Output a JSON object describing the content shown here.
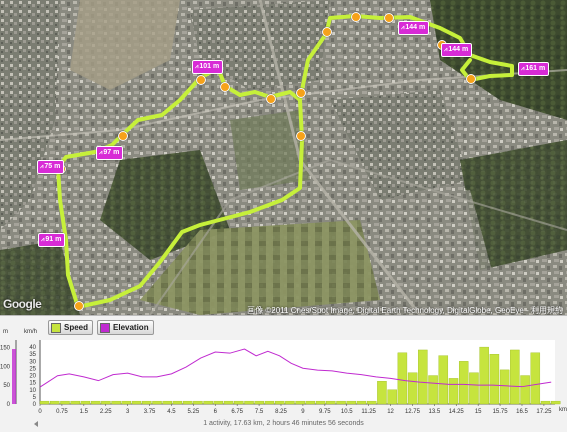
{
  "map": {
    "logo": "Google",
    "copyright": "画像 ©2011 Cnes/Spot Image, Digital Earth Technology, DigitalGlobe, GeoEye - 利用規約",
    "route_color": "#c6f03a",
    "waypoint_color": "#f6a21a",
    "pin_color": "#d82bd6",
    "elevation_glyph": "⩘",
    "elevation_pins": [
      {
        "label": "75 m"
      },
      {
        "label": "97 m"
      },
      {
        "label": "101 m"
      },
      {
        "label": "144 m"
      },
      {
        "label": "144 m"
      },
      {
        "label": "161 m"
      },
      {
        "label": "91 m"
      }
    ]
  },
  "chart_controls": {
    "legend": [
      {
        "label": "Speed",
        "icon": "speed-swatch",
        "color": "#c6e43e"
      },
      {
        "label": "Elevation",
        "icon": "elevation-swatch",
        "color": "#c02ad0"
      }
    ],
    "status": "1 activity, 17.63 km, 2 hours 46 minutes 56 seconds"
  },
  "chart_data": {
    "type": "bar",
    "x_unit": "km",
    "xlim": [
      0,
      17.63
    ],
    "x_ticks": [
      "0",
      "0.75",
      "1.5",
      "2.25",
      "3",
      "3.75",
      "4.5",
      "5.25",
      "6",
      "6.75",
      "7.5",
      "8.25",
      "9",
      "9.75",
      "10.5",
      "11.25",
      "12",
      "12.75",
      "13.5",
      "14.25",
      "15",
      "15.75",
      "16.5",
      "17.25"
    ],
    "y_left": {
      "unit": "m",
      "ticks": [
        "0",
        "50",
        "100",
        "150"
      ],
      "range": [
        0,
        170
      ]
    },
    "y_right": {
      "unit": "km/h",
      "ticks": [
        "0",
        "5",
        "10",
        "15",
        "20",
        "25",
        "30",
        "35",
        "40"
      ],
      "range": [
        0,
        45
      ]
    },
    "series": [
      {
        "name": "Speed",
        "kind": "bars",
        "color": "#c6e43e",
        "x": [
          0,
          0.35,
          0.7,
          1.05,
          1.4,
          1.75,
          2.1,
          2.45,
          2.8,
          3.15,
          3.5,
          3.85,
          4.2,
          4.55,
          4.9,
          5.25,
          5.6,
          5.95,
          6.3,
          6.65,
          7.0,
          7.35,
          7.7,
          8.05,
          8.4,
          8.75,
          9.1,
          9.45,
          9.8,
          10.15,
          10.5,
          10.85,
          11.2,
          11.55,
          11.9,
          12.25,
          12.6,
          12.95,
          13.3,
          13.65,
          14.0,
          14.35,
          14.7,
          15.05,
          15.4,
          15.75,
          16.1,
          16.45,
          16.8,
          17.15,
          17.5
        ],
        "values": [
          2,
          2,
          2,
          2,
          2,
          2,
          2,
          2,
          2,
          2,
          2,
          2,
          2,
          2,
          2,
          2,
          2,
          2,
          2,
          2,
          2,
          2,
          2,
          2,
          2,
          2,
          2,
          2,
          2,
          2,
          2,
          2,
          2,
          16,
          10,
          36,
          22,
          38,
          20,
          34,
          18,
          30,
          22,
          40,
          35,
          24,
          38,
          20,
          36,
          2,
          2
        ]
      },
      {
        "name": "Elevation",
        "kind": "line",
        "color": "#c02ad0",
        "x": [
          0,
          0.2,
          0.6,
          1.0,
          1.5,
          2.0,
          2.5,
          3.0,
          3.5,
          4.0,
          4.5,
          5.0,
          5.5,
          6.0,
          6.5,
          7.0,
          7.4,
          7.8,
          8.2,
          8.6,
          9.0,
          9.5,
          10.0,
          10.5,
          11.0,
          11.5,
          12.0,
          12.5,
          13.0,
          13.5,
          14.0,
          14.5,
          15.0,
          15.5,
          16.0,
          16.5,
          17.0,
          17.5
        ],
        "values": [
          45,
          55,
          75,
          80,
          72,
          62,
          78,
          82,
          72,
          72,
          80,
          98,
          122,
          138,
          135,
          146,
          128,
          140,
          128,
          108,
          95,
          90,
          88,
          82,
          78,
          72,
          68,
          62,
          58,
          55,
          52,
          52,
          50,
          50,
          48,
          46,
          52,
          58
        ]
      }
    ]
  }
}
